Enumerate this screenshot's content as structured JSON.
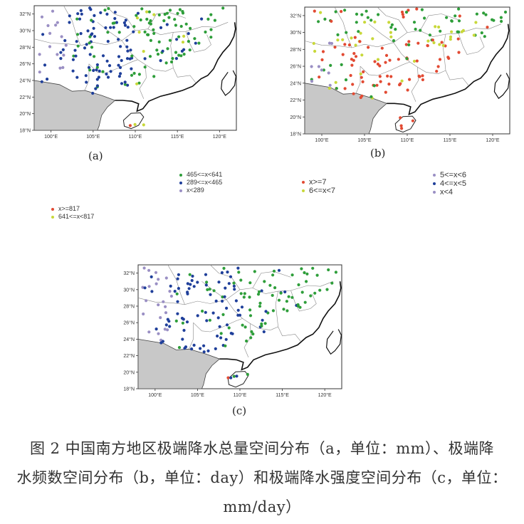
{
  "maps": [
    {
      "id": "a",
      "label": "(a)",
      "y_ticks": [
        "32°N",
        "30°N",
        "28°N",
        "26°N",
        "24°N",
        "22°N",
        "20°N",
        "18°N"
      ],
      "x_ticks": [
        "100°E",
        "105°E",
        "110°E",
        "115°E",
        "120°E"
      ]
    },
    {
      "id": "b",
      "label": "(b)",
      "y_ticks": [
        "32°N",
        "30°N",
        "28°N",
        "26°N",
        "24°N",
        "22°N",
        "20°N",
        "18°N"
      ],
      "x_ticks": [
        "100°E",
        "105°E",
        "110°E",
        "115°E",
        "120°E"
      ]
    },
    {
      "id": "c",
      "label": "(c)",
      "y_ticks": [
        "32°N",
        "30°N",
        "28°N",
        "26°N",
        "24°N",
        "22°N",
        "20°N",
        "18°N"
      ],
      "x_ticks": [
        "100°E",
        "105°E",
        "110°E",
        "115°E",
        "120°E"
      ]
    }
  ],
  "legend_a_upper": [
    {
      "label": "465<=x<641",
      "color": "#2e9e3a"
    },
    {
      "label": "289<=x<465",
      "color": "#1f3f9a"
    },
    {
      "label": "x<289",
      "color": "#9a8fc4"
    }
  ],
  "legend_a_lower": [
    {
      "label": "x>=817",
      "color": "#e24a33"
    },
    {
      "label": "641<=x<817",
      "color": "#c8d83a"
    }
  ],
  "legend_b_left": [
    {
      "label": "x>=7",
      "color": "#e24a33"
    },
    {
      "label": "6<=x<7",
      "color": "#c8d83a"
    }
  ],
  "legend_b_right": [
    {
      "label": "5<=x<6",
      "color": "#9a8fc4"
    },
    {
      "label": "4<=x<5",
      "color": "#1f3f9a"
    },
    {
      "label": "x<4",
      "color": "#9a8fc4"
    }
  ],
  "caption": {
    "line1": "图 2 中国南方地区极端降水总量空间分布（a，单位：mm）、极端降",
    "line2": "水频数空间分布（b，单位：day）和极端降水强度空间分布（c，单位：",
    "line3": "mm/day）"
  },
  "colors": {
    "red": "#e24a33",
    "yellow": "#c8d83a",
    "green": "#2e9e3a",
    "blue": "#1f3f9a",
    "purple": "#9a8fc4",
    "ocean": "#c8c8c8",
    "land": "#ffffff"
  }
}
